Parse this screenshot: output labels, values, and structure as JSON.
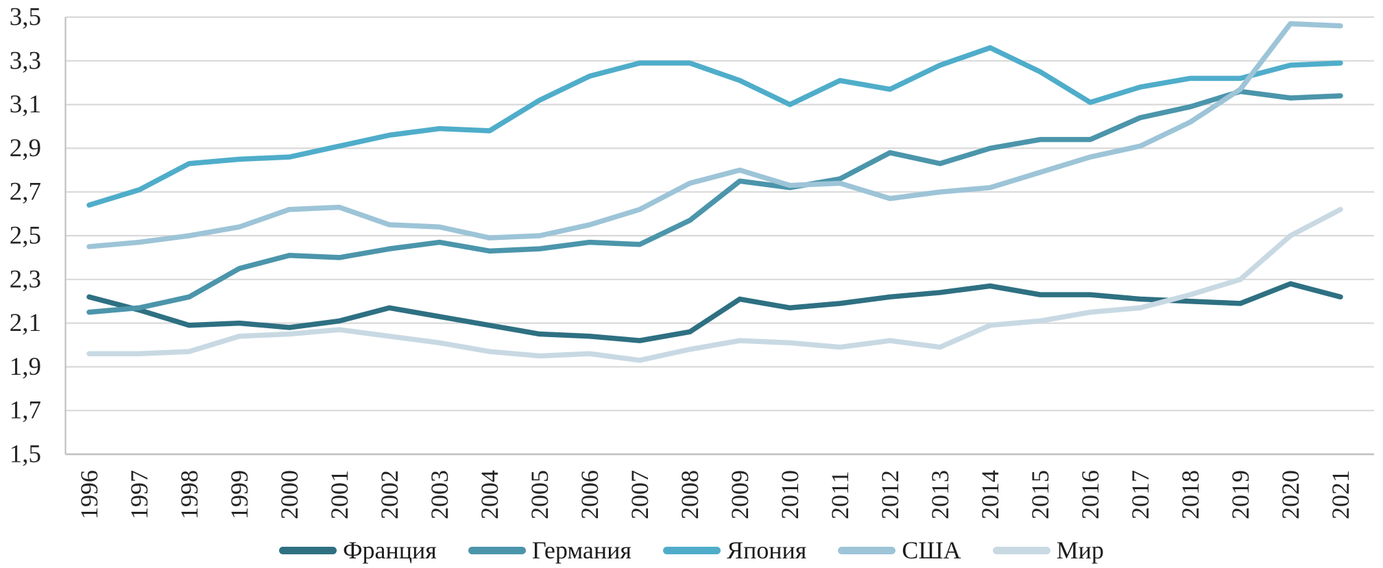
{
  "chart_data": {
    "type": "line",
    "title": "",
    "xlabel": "",
    "ylabel": "",
    "x": [
      1996,
      1997,
      1998,
      1999,
      2000,
      2001,
      2002,
      2003,
      2004,
      2005,
      2006,
      2007,
      2008,
      2009,
      2010,
      2011,
      2012,
      2013,
      2014,
      2015,
      2016,
      2017,
      2018,
      2019,
      2020,
      2021
    ],
    "series": [
      {
        "name": "Франция",
        "color": "#2E7082",
        "values": [
          2.22,
          2.16,
          2.09,
          2.1,
          2.08,
          2.11,
          2.17,
          2.13,
          2.09,
          2.05,
          2.04,
          2.02,
          2.06,
          2.21,
          2.17,
          2.19,
          2.22,
          2.24,
          2.27,
          2.23,
          2.23,
          2.21,
          2.2,
          2.19,
          2.28,
          2.22
        ]
      },
      {
        "name": "Германия",
        "color": "#4B95AB",
        "values": [
          2.15,
          2.17,
          2.22,
          2.35,
          2.41,
          2.4,
          2.44,
          2.47,
          2.43,
          2.44,
          2.47,
          2.46,
          2.57,
          2.75,
          2.72,
          2.76,
          2.88,
          2.83,
          2.9,
          2.94,
          2.94,
          3.04,
          3.09,
          3.16,
          3.13,
          3.14
        ]
      },
      {
        "name": "Япония",
        "color": "#4FADCA",
        "values": [
          2.64,
          2.71,
          2.83,
          2.85,
          2.86,
          2.91,
          2.96,
          2.99,
          2.98,
          3.12,
          3.23,
          3.29,
          3.29,
          3.21,
          3.1,
          3.21,
          3.17,
          3.28,
          3.36,
          3.25,
          3.11,
          3.18,
          3.22,
          3.22,
          3.28,
          3.29
        ]
      },
      {
        "name": "США",
        "color": "#9DC4D7",
        "values": [
          2.45,
          2.47,
          2.5,
          2.54,
          2.62,
          2.63,
          2.55,
          2.54,
          2.49,
          2.5,
          2.55,
          2.62,
          2.74,
          2.8,
          2.73,
          2.74,
          2.67,
          2.7,
          2.72,
          2.79,
          2.86,
          2.91,
          3.02,
          3.17,
          3.47,
          3.46
        ]
      },
      {
        "name": "Мир",
        "color": "#C8D9E3",
        "values": [
          1.96,
          1.96,
          1.97,
          2.04,
          2.05,
          2.07,
          2.04,
          2.01,
          1.97,
          1.95,
          1.96,
          1.93,
          1.98,
          2.02,
          2.01,
          1.99,
          2.02,
          1.99,
          2.09,
          2.11,
          2.15,
          2.17,
          2.23,
          2.3,
          2.5,
          2.62
        ]
      }
    ],
    "ylim": [
      1.5,
      3.5
    ],
    "ytick_step": 0.2,
    "ytick_labels": [
      "3,5",
      "3,3",
      "3,1",
      "2,9",
      "2,7",
      "2,5",
      "2,3",
      "2,1",
      "1,9",
      "1,7",
      "1,5"
    ],
    "grid": true,
    "legend_position": "bottom",
    "decimal_separator": ","
  },
  "styles": {
    "grid_color": "#d9d9d9",
    "axis_color": "#c0c0c0",
    "label_color": "#242424",
    "background": "#ffffff"
  }
}
